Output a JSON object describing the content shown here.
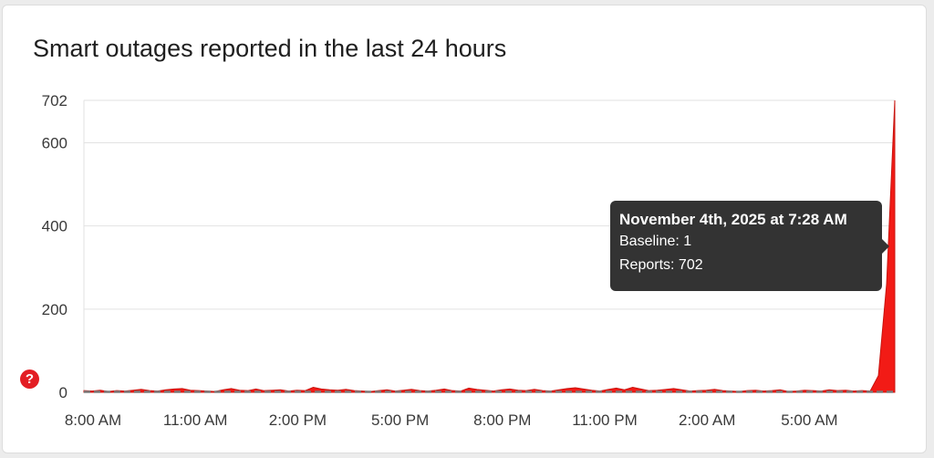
{
  "chart_data": {
    "type": "area",
    "title": "Smart outages reported in the last 24 hours",
    "yticks": [
      0,
      200,
      400,
      600,
      702
    ],
    "ylim": [
      0,
      702
    ],
    "x_tick_labels": [
      "8:00 AM",
      "11:00 AM",
      "2:00 PM",
      "5:00 PM",
      "8:00 PM",
      "11:00 PM",
      "2:00 AM",
      "5:00 AM"
    ],
    "grid": true,
    "color": "#f21b16",
    "baseline_color": "#7a7a7a",
    "series": [
      {
        "values": [
          4,
          3,
          5,
          2,
          4,
          3,
          5,
          7,
          4,
          3,
          6,
          8,
          9,
          5,
          4,
          3,
          2,
          6,
          9,
          5,
          4,
          8,
          4,
          5,
          6,
          3,
          5,
          4,
          12,
          8,
          6,
          5,
          7,
          4,
          3,
          2,
          4,
          6,
          3,
          5,
          7,
          4,
          3,
          5,
          8,
          4,
          3,
          10,
          7,
          5,
          3,
          6,
          8,
          5,
          4,
          7,
          4,
          3,
          6,
          9,
          11,
          8,
          5,
          3,
          7,
          10,
          6,
          12,
          8,
          4,
          5,
          7,
          9,
          6,
          3,
          4,
          5,
          7,
          4,
          3,
          2,
          4,
          5,
          3,
          4,
          6,
          2,
          3,
          5,
          4,
          3,
          6,
          4,
          5,
          3,
          4,
          3,
          40,
          260,
          702
        ]
      }
    ],
    "baseline": 1,
    "tooltip": {
      "title": "November 4th, 2025 at 7:28 AM",
      "baseline_label": "Baseline: 1",
      "reports_label": "Reports: 702"
    }
  },
  "help_icon_glyph": "?"
}
